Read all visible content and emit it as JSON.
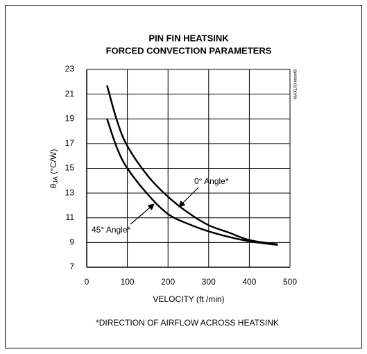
{
  "chart_data": {
    "type": "line",
    "title": [
      "PIN FIN HEATSINK",
      "FORCED CONVECTION PARAMETERS"
    ],
    "xlabel": "VELOCITY (ft /min)",
    "ylabel": [
      "θ",
      "JA",
      " (°C/W)"
    ],
    "side_note": "MAX100-insert8",
    "footnote": "*DIRECTION OF AIRFLOW ACROSS HEATSINK",
    "x": [
      50,
      75,
      100,
      150,
      200,
      250,
      300,
      350,
      400,
      470
    ],
    "series": [
      {
        "name": "0° Angle*",
        "color": "#000000",
        "values": [
          21.7,
          18.8,
          16.8,
          14.4,
          12.7,
          11.4,
          10.4,
          9.8,
          9.2,
          8.85
        ]
      },
      {
        "name": "45° Angle*",
        "color": "#000000",
        "values": [
          19,
          16.6,
          15,
          12.9,
          11.3,
          10.5,
          9.9,
          9.45,
          9.1,
          8.8
        ]
      }
    ],
    "xlim": [
      0,
      500
    ],
    "xticks": [
      0,
      100,
      200,
      300,
      400,
      500
    ],
    "ylim": [
      7,
      23
    ],
    "yticks": [
      7,
      9,
      11,
      13,
      15,
      17,
      19,
      21,
      23
    ],
    "grid": true
  }
}
